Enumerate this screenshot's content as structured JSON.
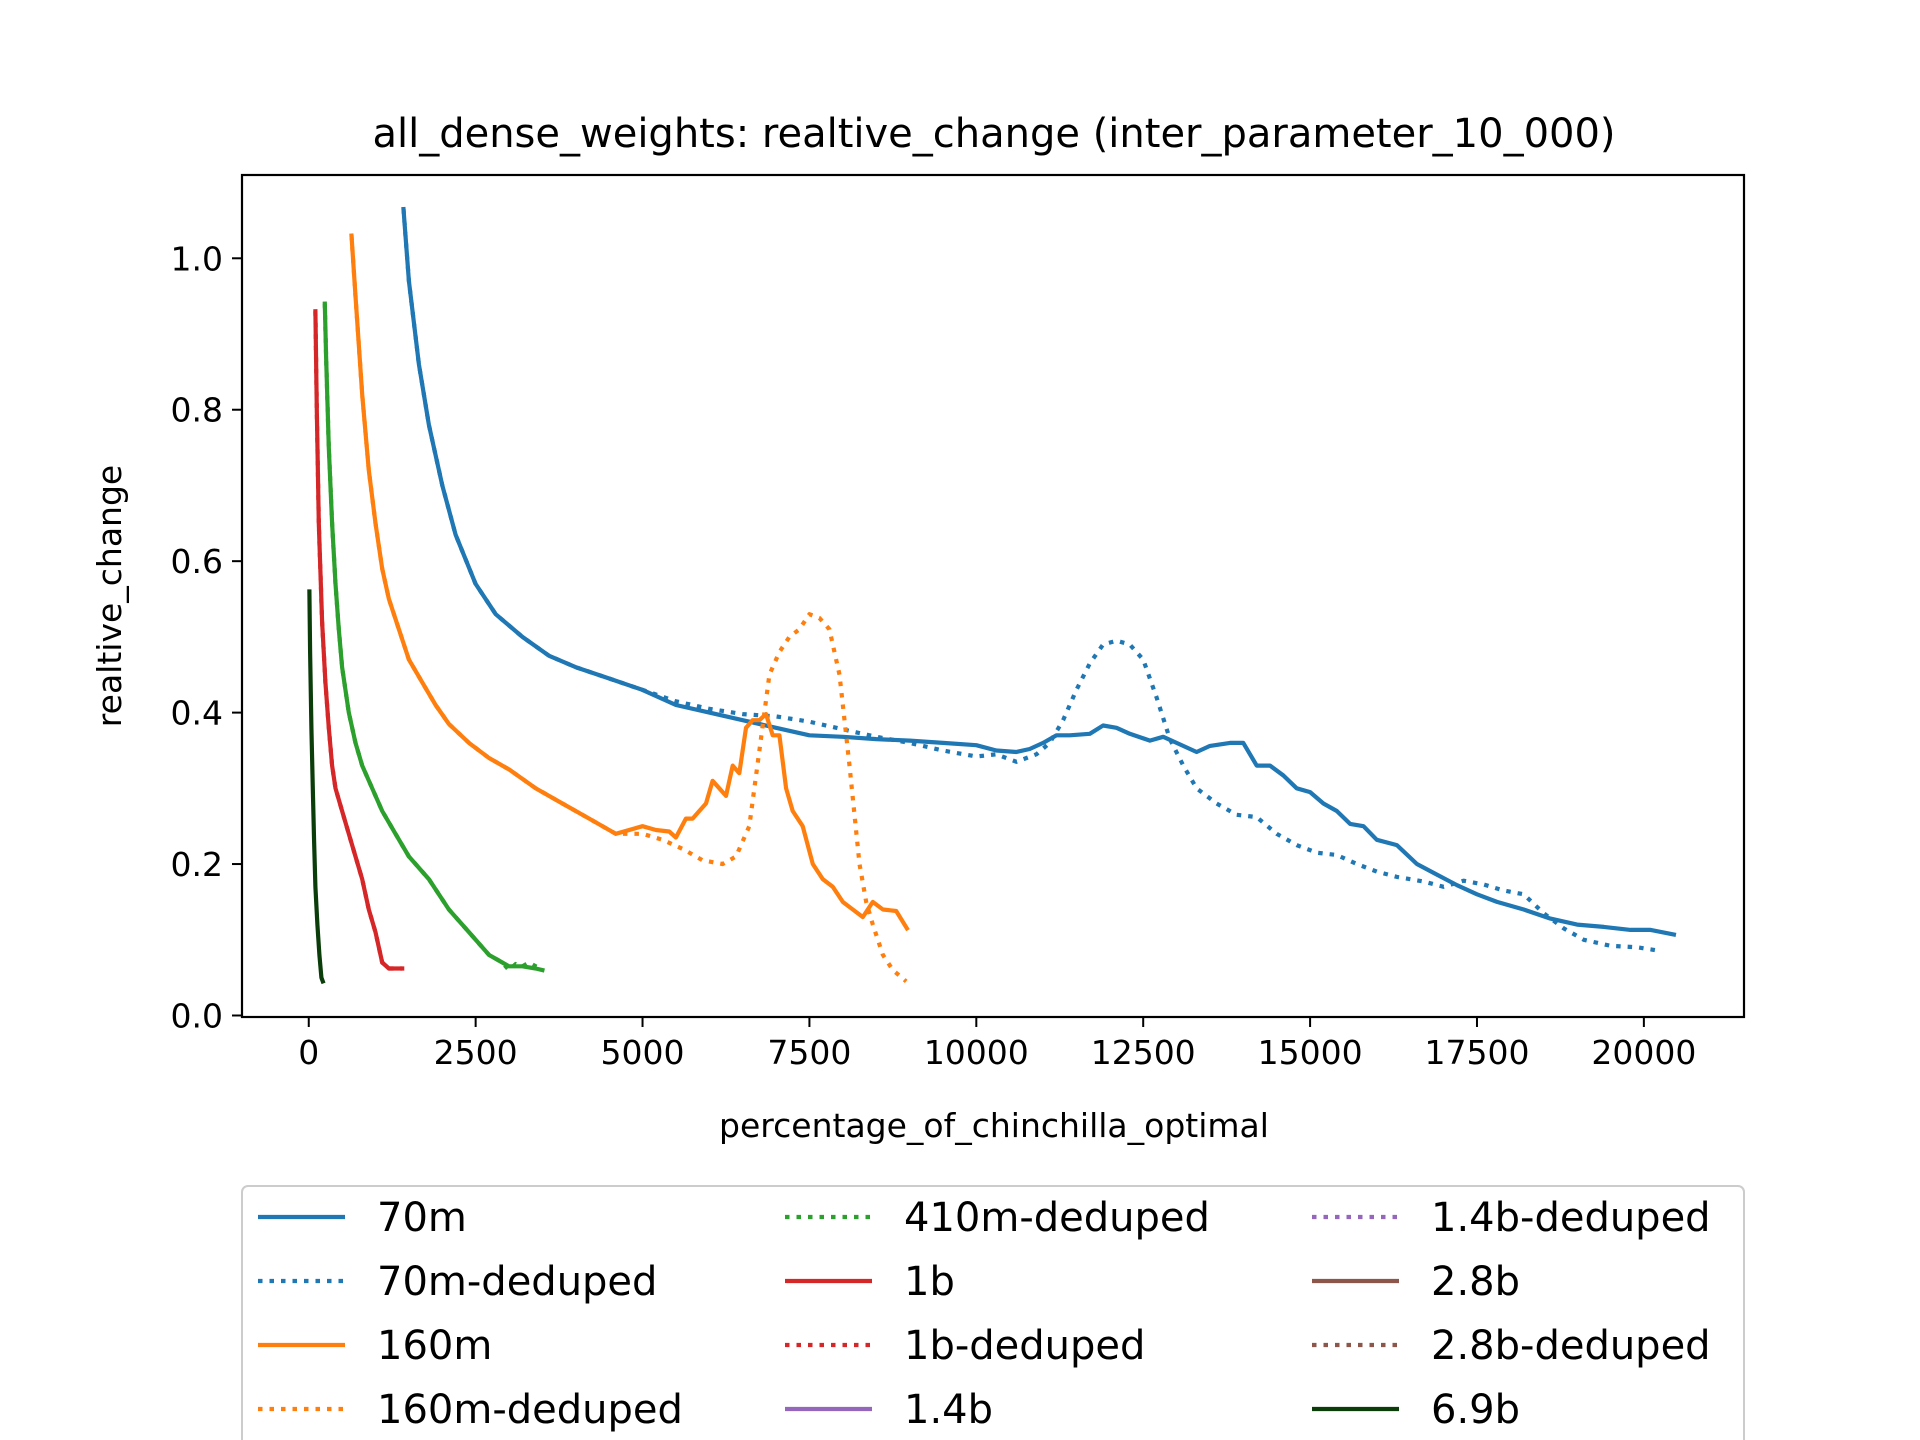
{
  "chart_data": {
    "type": "line",
    "title": "all_dense_weights: realtive_change (inter_parameter_10_000)",
    "xlabel": "percentage_of_chinchilla_optimal",
    "ylabel": "realtive_change",
    "xlim": [
      -1000,
      21500
    ],
    "ylim": [
      -0.002,
      1.11
    ],
    "xticks": [
      0,
      2500,
      5000,
      7500,
      10000,
      12500,
      15000,
      17500,
      20000
    ],
    "yticks": [
      0.0,
      0.2,
      0.4,
      0.6,
      0.8,
      1.0
    ],
    "xtick_labels": [
      "0",
      "2500",
      "5000",
      "7500",
      "10000",
      "12500",
      "15000",
      "17500",
      "20000"
    ],
    "ytick_labels": [
      "0.0",
      "0.2",
      "0.4",
      "0.6",
      "0.8",
      "1.0"
    ],
    "grid": false,
    "legend_position": "below-center",
    "legend_columns": 3,
    "series": [
      {
        "name": "70m",
        "color": "#1f77b4",
        "style": "solid",
        "x": [
          1420,
          1500,
          1650,
          1800,
          2000,
          2200,
          2500,
          2800,
          3200,
          3600,
          4000,
          4500,
          5000,
          5500,
          6000,
          6500,
          7000,
          7500,
          8000,
          8500,
          9000,
          9500,
          10000,
          10300,
          10600,
          10800,
          11000,
          11200,
          11400,
          11700,
          11900,
          12100,
          12300,
          12600,
          12800,
          13000,
          13300,
          13500,
          13800,
          14000,
          14200,
          14400,
          14600,
          14800,
          15000,
          15200,
          15400,
          15600,
          15800,
          16000,
          16300,
          16600,
          16900,
          17200,
          17500,
          17800,
          18200,
          18600,
          19000,
          19400,
          19800,
          20100,
          20450
        ],
        "y": [
          1.065,
          0.97,
          0.86,
          0.78,
          0.7,
          0.635,
          0.57,
          0.53,
          0.5,
          0.475,
          0.46,
          0.445,
          0.43,
          0.41,
          0.4,
          0.39,
          0.38,
          0.37,
          0.368,
          0.365,
          0.363,
          0.36,
          0.357,
          0.35,
          0.348,
          0.352,
          0.36,
          0.37,
          0.37,
          0.372,
          0.383,
          0.38,
          0.372,
          0.363,
          0.368,
          0.36,
          0.348,
          0.356,
          0.36,
          0.36,
          0.33,
          0.33,
          0.317,
          0.3,
          0.295,
          0.28,
          0.27,
          0.253,
          0.25,
          0.232,
          0.225,
          0.2,
          0.186,
          0.172,
          0.16,
          0.15,
          0.14,
          0.128,
          0.12,
          0.117,
          0.113,
          0.113,
          0.107
        ]
      },
      {
        "name": "70m-deduped",
        "color": "#1f77b4",
        "style": "dotted",
        "x": [
          1420,
          1500,
          1650,
          1800,
          2000,
          2200,
          2500,
          2800,
          3200,
          3600,
          4000,
          4500,
          5000,
          5500,
          6000,
          6500,
          7000,
          7500,
          8000,
          8500,
          9000,
          9500,
          10000,
          10300,
          10600,
          10900,
          11100,
          11300,
          11500,
          11700,
          11900,
          12100,
          12300,
          12500,
          12700,
          12900,
          13100,
          13300,
          13600,
          13900,
          14200,
          14500,
          14800,
          15100,
          15400,
          15700,
          16000,
          16300,
          16700,
          17000,
          17300,
          17600,
          17900,
          18200,
          18500,
          18800,
          19100,
          19500,
          19900,
          20200
        ],
        "y": [
          1.065,
          0.97,
          0.86,
          0.78,
          0.7,
          0.635,
          0.57,
          0.53,
          0.5,
          0.475,
          0.46,
          0.445,
          0.43,
          0.415,
          0.405,
          0.398,
          0.395,
          0.388,
          0.378,
          0.368,
          0.36,
          0.35,
          0.342,
          0.345,
          0.335,
          0.345,
          0.36,
          0.39,
          0.43,
          0.465,
          0.49,
          0.495,
          0.49,
          0.47,
          0.42,
          0.365,
          0.33,
          0.3,
          0.28,
          0.265,
          0.262,
          0.24,
          0.225,
          0.215,
          0.212,
          0.2,
          0.19,
          0.183,
          0.177,
          0.17,
          0.178,
          0.173,
          0.165,
          0.16,
          0.135,
          0.115,
          0.1,
          0.092,
          0.09,
          0.086
        ]
      },
      {
        "name": "160m",
        "color": "#ff7f0e",
        "style": "solid",
        "x": [
          640,
          700,
          800,
          900,
          1000,
          1100,
          1200,
          1350,
          1500,
          1700,
          1900,
          2100,
          2400,
          2700,
          3000,
          3400,
          3800,
          4200,
          4600,
          5000,
          5200,
          5400,
          5500,
          5650,
          5750,
          5850,
          5950,
          6050,
          6150,
          6250,
          6350,
          6450,
          6550,
          6650,
          6750,
          6850,
          6950,
          7050,
          7150,
          7250,
          7400,
          7550,
          7700,
          7850,
          8000,
          8150,
          8300,
          8450,
          8600,
          8800,
          8960
        ],
        "y": [
          1.03,
          0.95,
          0.82,
          0.72,
          0.65,
          0.59,
          0.55,
          0.51,
          0.47,
          0.44,
          0.41,
          0.385,
          0.36,
          0.34,
          0.325,
          0.3,
          0.28,
          0.26,
          0.24,
          0.25,
          0.245,
          0.243,
          0.235,
          0.26,
          0.26,
          0.27,
          0.28,
          0.31,
          0.3,
          0.29,
          0.33,
          0.32,
          0.38,
          0.39,
          0.39,
          0.398,
          0.37,
          0.37,
          0.3,
          0.27,
          0.25,
          0.2,
          0.18,
          0.17,
          0.15,
          0.14,
          0.13,
          0.15,
          0.14,
          0.138,
          0.115
        ]
      },
      {
        "name": "160m-deduped",
        "color": "#ff7f0e",
        "style": "dotted",
        "x": [
          640,
          700,
          800,
          900,
          1000,
          1100,
          1200,
          1350,
          1500,
          1700,
          1900,
          2100,
          2400,
          2700,
          3000,
          3400,
          3800,
          4200,
          4600,
          5000,
          5300,
          5600,
          5900,
          6200,
          6400,
          6600,
          6750,
          6900,
          7050,
          7200,
          7350,
          7500,
          7650,
          7800,
          7950,
          8100,
          8250,
          8350,
          8450,
          8600,
          8750,
          8950
        ],
        "y": [
          1.03,
          0.95,
          0.82,
          0.72,
          0.65,
          0.59,
          0.55,
          0.51,
          0.47,
          0.44,
          0.41,
          0.385,
          0.36,
          0.34,
          0.325,
          0.3,
          0.28,
          0.26,
          0.24,
          0.24,
          0.232,
          0.22,
          0.205,
          0.2,
          0.21,
          0.25,
          0.35,
          0.45,
          0.48,
          0.5,
          0.51,
          0.53,
          0.525,
          0.51,
          0.45,
          0.33,
          0.2,
          0.15,
          0.12,
          0.08,
          0.06,
          0.045
        ]
      },
      {
        "name": "410m-deduped",
        "color": "#2ca02c",
        "style": "dotted",
        "x": [
          240,
          260,
          300,
          350,
          400,
          450,
          500,
          600,
          700,
          800,
          950,
          1100,
          1300,
          1500,
          1800,
          2100,
          2400,
          2700,
          2900,
          3000,
          3100,
          3200,
          3300,
          3400,
          3500
        ],
        "y": [
          0.94,
          0.87,
          0.75,
          0.65,
          0.57,
          0.51,
          0.46,
          0.4,
          0.36,
          0.33,
          0.3,
          0.27,
          0.24,
          0.21,
          0.18,
          0.14,
          0.11,
          0.08,
          0.07,
          0.06,
          0.068,
          0.065,
          0.07,
          0.065,
          0.062
        ]
      },
      {
        "name": "1b",
        "color": "#d62728",
        "style": "solid",
        "x": [
          100,
          120,
          150,
          200,
          250,
          300,
          350,
          400,
          500,
          600,
          700,
          800,
          900,
          1000,
          1100,
          1200,
          1300,
          1400
        ],
        "y": [
          0.93,
          0.8,
          0.65,
          0.52,
          0.44,
          0.38,
          0.33,
          0.3,
          0.27,
          0.24,
          0.21,
          0.18,
          0.14,
          0.11,
          0.07,
          0.062,
          0.062,
          0.062
        ]
      },
      {
        "name": "1b-deduped",
        "color": "#d62728",
        "style": "dotted",
        "x": [
          100,
          120,
          150,
          200,
          250,
          300,
          350,
          400,
          500,
          600,
          700,
          800,
          900,
          1000,
          1100,
          1200,
          1300,
          1400
        ],
        "y": [
          0.93,
          0.8,
          0.65,
          0.52,
          0.44,
          0.38,
          0.33,
          0.3,
          0.27,
          0.24,
          0.21,
          0.18,
          0.14,
          0.11,
          0.07,
          0.062,
          0.062,
          0.062
        ]
      },
      {
        "name": "410m",
        "color": "#2ca02c",
        "style": "solid",
        "x": [
          240,
          260,
          300,
          350,
          400,
          450,
          500,
          600,
          700,
          800,
          950,
          1100,
          1300,
          1500,
          1800,
          2100,
          2400,
          2700,
          2900,
          3000,
          3200,
          3400,
          3500
        ],
        "y": [
          0.94,
          0.87,
          0.75,
          0.65,
          0.57,
          0.51,
          0.46,
          0.4,
          0.36,
          0.33,
          0.3,
          0.27,
          0.24,
          0.21,
          0.18,
          0.14,
          0.11,
          0.08,
          0.07,
          0.065,
          0.065,
          0.062,
          0.06
        ]
      },
      {
        "name": "1.4b",
        "color": "#9467bd",
        "style": "solid",
        "x": [],
        "y": []
      },
      {
        "name": "1.4b-deduped",
        "color": "#9467bd",
        "style": "dotted",
        "x": [],
        "y": []
      },
      {
        "name": "2.8b",
        "color": "#8c564b",
        "style": "solid",
        "x": [],
        "y": []
      },
      {
        "name": "2.8b-deduped",
        "color": "#8c564b",
        "style": "dotted",
        "x": [],
        "y": []
      },
      {
        "name": "6.9b",
        "color": "#0b3d0b",
        "style": "solid",
        "x": [
          10,
          20,
          40,
          60,
          80,
          100,
          130,
          160,
          190,
          210
        ],
        "y": [
          0.56,
          0.48,
          0.38,
          0.3,
          0.23,
          0.17,
          0.12,
          0.08,
          0.05,
          0.045
        ]
      }
    ],
    "legend_entries": [
      {
        "label": "70m",
        "color": "#1f77b4",
        "style": "solid"
      },
      {
        "label": "70m-deduped",
        "color": "#1f77b4",
        "style": "dotted"
      },
      {
        "label": "160m",
        "color": "#ff7f0e",
        "style": "solid"
      },
      {
        "label": "160m-deduped",
        "color": "#ff7f0e",
        "style": "dotted"
      },
      {
        "label": "410m-deduped",
        "color": "#2ca02c",
        "style": "dotted"
      },
      {
        "label": "1b",
        "color": "#d62728",
        "style": "solid"
      },
      {
        "label": "1b-deduped",
        "color": "#d62728",
        "style": "dotted"
      },
      {
        "label": "1.4b",
        "color": "#9467bd",
        "style": "solid"
      },
      {
        "label": "1.4b-deduped",
        "color": "#9467bd",
        "style": "dotted"
      },
      {
        "label": "2.8b",
        "color": "#8c564b",
        "style": "solid"
      },
      {
        "label": "2.8b-deduped",
        "color": "#8c564b",
        "style": "dotted"
      },
      {
        "label": "6.9b",
        "color": "#0b3d0b",
        "style": "solid"
      }
    ]
  }
}
